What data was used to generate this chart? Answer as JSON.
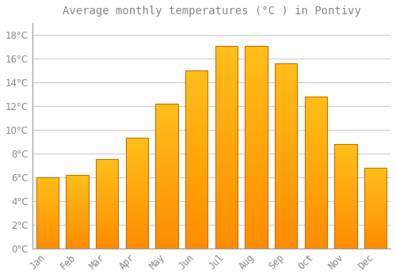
{
  "title": "Average monthly temperatures (°C ) in Pontivy",
  "months": [
    "Jan",
    "Feb",
    "Mar",
    "Apr",
    "May",
    "Jun",
    "Jul",
    "Aug",
    "Sep",
    "Oct",
    "Nov",
    "Dec"
  ],
  "values": [
    6.0,
    6.2,
    7.5,
    9.3,
    12.2,
    15.0,
    17.1,
    17.1,
    15.6,
    12.8,
    8.8,
    6.8
  ],
  "bar_color_top": "#FFB300",
  "bar_color_bottom": "#FF8C00",
  "bar_edge_color": "#CC7000",
  "background_color": "#FFFFFF",
  "grid_color": "#CCCCCC",
  "text_color": "#888888",
  "spine_color": "#999999",
  "ylim": [
    0,
    19
  ],
  "yticks": [
    0,
    2,
    4,
    6,
    8,
    10,
    12,
    14,
    16,
    18
  ],
  "title_fontsize": 10,
  "tick_fontsize": 8.5
}
